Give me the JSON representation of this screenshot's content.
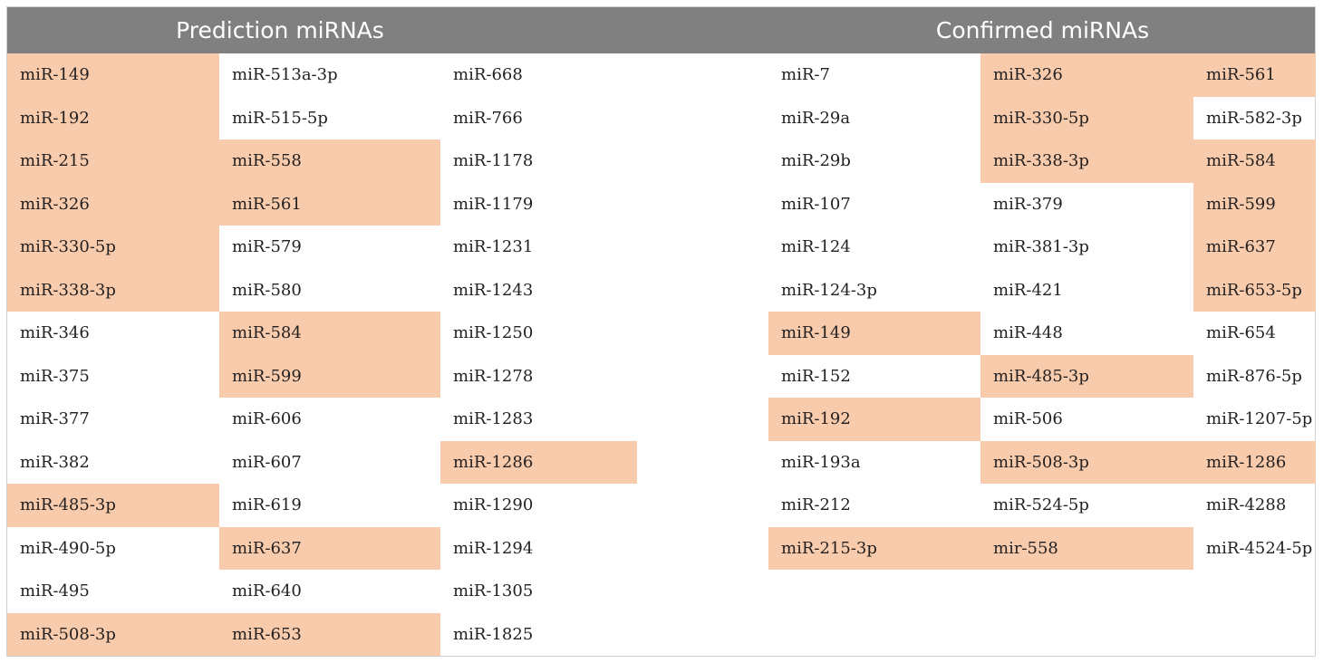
{
  "header": {
    "prediction_title": "Prediction miRNAs",
    "confirmed_title": "Confirmed miRNAs"
  },
  "colors": {
    "header_bg": "#808080",
    "highlight": "#f7cbab",
    "text": "#231f20"
  },
  "prediction": {
    "columns": [
      [
        {
          "text": "miR-149",
          "hl": true
        },
        {
          "text": "miR-192",
          "hl": true
        },
        {
          "text": "miR-215",
          "hl": true
        },
        {
          "text": "miR-326",
          "hl": true
        },
        {
          "text": "miR-330-5p",
          "hl": true
        },
        {
          "text": "miR-338-3p",
          "hl": true
        },
        {
          "text": "miR-346",
          "hl": false
        },
        {
          "text": "miR-375",
          "hl": false
        },
        {
          "text": "miR-377",
          "hl": false
        },
        {
          "text": "miR-382",
          "hl": false
        },
        {
          "text": "miR-485-3p",
          "hl": true
        },
        {
          "text": "miR-490-5p",
          "hl": false
        },
        {
          "text": "miR-495",
          "hl": false
        },
        {
          "text": "miR-508-3p",
          "hl": true
        }
      ],
      [
        {
          "text": "miR-513a-3p",
          "hl": false
        },
        {
          "text": "miR-515-5p",
          "hl": false
        },
        {
          "text": "miR-558",
          "hl": true
        },
        {
          "text": "miR-561",
          "hl": true
        },
        {
          "text": "miR-579",
          "hl": false
        },
        {
          "text": "miR-580",
          "hl": false
        },
        {
          "text": "miR-584",
          "hl": true
        },
        {
          "text": "miR-599",
          "hl": true
        },
        {
          "text": "miR-606",
          "hl": false
        },
        {
          "text": "miR-607",
          "hl": false
        },
        {
          "text": "miR-619",
          "hl": false
        },
        {
          "text": "miR-637",
          "hl": true
        },
        {
          "text": "miR-640",
          "hl": false
        },
        {
          "text": "miR-653",
          "hl": true
        }
      ],
      [
        {
          "text": "miR-668",
          "hl": false
        },
        {
          "text": "miR-766",
          "hl": false
        },
        {
          "text": "miR-1178",
          "hl": false
        },
        {
          "text": "miR-1179",
          "hl": false
        },
        {
          "text": "miR-1231",
          "hl": false
        },
        {
          "text": "miR-1243",
          "hl": false
        },
        {
          "text": "miR-1250",
          "hl": false
        },
        {
          "text": "miR-1278",
          "hl": false
        },
        {
          "text": "miR-1283",
          "hl": false
        },
        {
          "text": "miR-1286",
          "hl": true
        },
        {
          "text": "miR-1290",
          "hl": false
        },
        {
          "text": "miR-1294",
          "hl": false
        },
        {
          "text": "miR-1305",
          "hl": false
        },
        {
          "text": "miR-1825",
          "hl": false
        }
      ]
    ]
  },
  "confirmed": {
    "columns": [
      [
        {
          "text": "miR-7",
          "hl": false
        },
        {
          "text": "miR-29a",
          "hl": false
        },
        {
          "text": "miR-29b",
          "hl": false
        },
        {
          "text": "miR-107",
          "hl": false
        },
        {
          "text": "miR-124",
          "hl": false
        },
        {
          "text": "miR-124-3p",
          "hl": false
        },
        {
          "text": "miR-149",
          "hl": true
        },
        {
          "text": "miR-152",
          "hl": false
        },
        {
          "text": "miR-192",
          "hl": true
        },
        {
          "text": "miR-193a",
          "hl": false
        },
        {
          "text": "miR-212",
          "hl": false
        },
        {
          "text": "miR-215-3p",
          "hl": true
        }
      ],
      [
        {
          "text": "miR-326",
          "hl": true
        },
        {
          "text": "miR-330-5p",
          "hl": true
        },
        {
          "text": "miR-338-3p",
          "hl": true
        },
        {
          "text": "miR-379",
          "hl": false
        },
        {
          "text": "miR-381-3p",
          "hl": false
        },
        {
          "text": "miR-421",
          "hl": false
        },
        {
          "text": "miR-448",
          "hl": false
        },
        {
          "text": "miR-485-3p",
          "hl": true
        },
        {
          "text": "miR-506",
          "hl": false
        },
        {
          "text": "miR-508-3p",
          "hl": true
        },
        {
          "text": "miR-524-5p",
          "hl": false
        },
        {
          "text": "mir-558",
          "hl": true
        }
      ],
      [
        {
          "text": "miR-561",
          "hl": true
        },
        {
          "text": "miR-582-3p",
          "hl": false
        },
        {
          "text": "miR-584",
          "hl": true
        },
        {
          "text": "miR-599",
          "hl": true
        },
        {
          "text": "miR-637",
          "hl": true
        },
        {
          "text": "miR-653-5p",
          "hl": true
        },
        {
          "text": "miR-654",
          "hl": false
        },
        {
          "text": "miR-876-5p",
          "hl": false
        },
        {
          "text": "miR-1207-5p",
          "hl": false
        },
        {
          "text": "miR-1286",
          "hl": true
        },
        {
          "text": "miR-4288",
          "hl": false
        },
        {
          "text": "miR-4524-5p",
          "hl": false
        }
      ]
    ]
  }
}
